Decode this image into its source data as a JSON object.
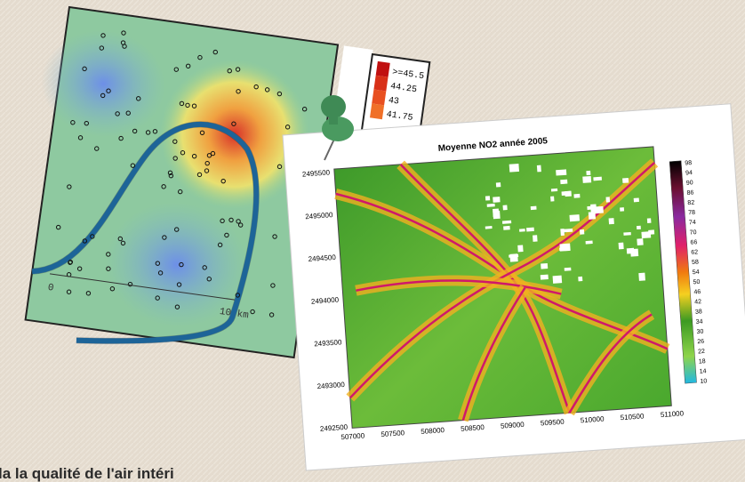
{
  "left_map": {
    "legend": [
      ">=45.5",
      "44.25",
      "43",
      "41.75"
    ],
    "scale": [
      "0",
      "10 km"
    ]
  },
  "right_map": {
    "title": "Moyenne NO2 année 2005",
    "y_labels": [
      "2495500",
      "2495000",
      "2494500",
      "2494000",
      "2493500",
      "2493000",
      "2492500"
    ],
    "x_labels": [
      "507000",
      "507500",
      "508000",
      "508500",
      "509000",
      "509500",
      "510000",
      "510500",
      "511000"
    ],
    "colorbar_labels": [
      "98",
      "94",
      "90",
      "86",
      "82",
      "78",
      "74",
      "70",
      "66",
      "62",
      "58",
      "54",
      "50",
      "46",
      "42",
      "38",
      "34",
      "30",
      "26",
      "22",
      "18",
      "14",
      "10"
    ]
  },
  "caption": "la la qualité de l'air intéri"
}
